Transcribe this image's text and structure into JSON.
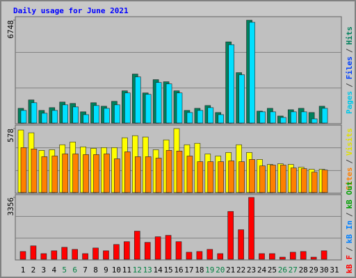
{
  "title": "Daily usage for June 2021",
  "weekend_color": "#008040",
  "weekends": [
    4,
    5,
    11,
    12,
    18,
    19,
    25,
    26
  ],
  "categories": [
    "1",
    "2",
    "3",
    "4",
    "5",
    "6",
    "7",
    "8",
    "9",
    "10",
    "11",
    "12",
    "13",
    "14",
    "15",
    "16",
    "17",
    "18",
    "19",
    "20",
    "21",
    "22",
    "23",
    "24",
    "25",
    "26",
    "27",
    "28",
    "29",
    "30",
    "31"
  ],
  "chart_data": [
    {
      "type": "bar",
      "ylim": [
        0,
        6748
      ],
      "yticks": [
        6748
      ],
      "series": [
        {
          "name": "Hits",
          "color": "#00805C",
          "values": [
            964,
            1515,
            826,
            1010,
            1377,
            1285,
            735,
            1331,
            1102,
            1423,
            2112,
            3213,
            1974,
            2846,
            2708,
            2112,
            826,
            964,
            1148,
            689,
            5325,
            3305,
            6748,
            780,
            964,
            459,
            872,
            964,
            689,
            1102,
            null
          ]
        },
        {
          "name": "Files",
          "color": "#00E0FF",
          "values": [
            826,
            1331,
            643,
            826,
            1194,
            1056,
            551,
            1148,
            964,
            1194,
            1974,
            3030,
            1882,
            2662,
            2571,
            1974,
            689,
            826,
            1010,
            551,
            5141,
            3167,
            6610,
            735,
            735,
            367,
            735,
            735,
            275,
            964,
            null
          ]
        }
      ],
      "legend": [
        {
          "text": "Pages",
          "color": "#00C8E8"
        },
        {
          "text": "/",
          "color": "#404040"
        },
        {
          "text": "Files",
          "color": "#0040FF"
        },
        {
          "text": "/",
          "color": "#404040"
        },
        {
          "text": "Hits",
          "color": "#00805C"
        }
      ]
    },
    {
      "type": "bar",
      "ylim": [
        0,
        578
      ],
      "yticks": [
        578
      ],
      "series": [
        {
          "name": "Visits",
          "color": "#FFFF00",
          "values": [
            565,
            540,
            381,
            387,
            432,
            457,
            413,
            400,
            406,
            406,
            495,
            514,
            502,
            387,
            476,
            578,
            432,
            445,
            349,
            330,
            362,
            432,
            362,
            299,
            254,
            260,
            254,
            229,
            210,
            210,
            null
          ]
        },
        {
          "name": "Sites",
          "color": "#FF8000",
          "values": [
            406,
            394,
            324,
            330,
            349,
            349,
            343,
            343,
            349,
            305,
            368,
            324,
            324,
            311,
            381,
            375,
            330,
            279,
            279,
            279,
            286,
            279,
            299,
            241,
            248,
            248,
            222,
            216,
            184,
            203,
            null
          ]
        }
      ],
      "legend": [
        {
          "text": "Sites",
          "color": "#FF8000"
        },
        {
          "text": "/",
          "color": "#404040"
        },
        {
          "text": "Visits",
          "color": "#E0E000"
        }
      ]
    },
    {
      "type": "bar",
      "ylim": [
        0,
        3356
      ],
      "yticks": [
        3356
      ],
      "series": [
        {
          "name": "kB F",
          "color": "#FF0000",
          "values": [
            420,
            725,
            305,
            458,
            648,
            534,
            305,
            610,
            458,
            801,
            953,
            1525,
            915,
            1220,
            1297,
            953,
            381,
            420,
            534,
            305,
            2593,
            1602,
            3356,
            305,
            305,
            114,
            381,
            420,
            114,
            458,
            null
          ]
        }
      ],
      "legend": [
        {
          "text": "kB F",
          "color": "#FF0000"
        },
        {
          "text": "/",
          "color": "#404040"
        },
        {
          "text": "kB In",
          "color": "#0080FF"
        },
        {
          "text": "/",
          "color": "#404040"
        },
        {
          "text": "kB Out",
          "color": "#00A000"
        }
      ]
    }
  ]
}
